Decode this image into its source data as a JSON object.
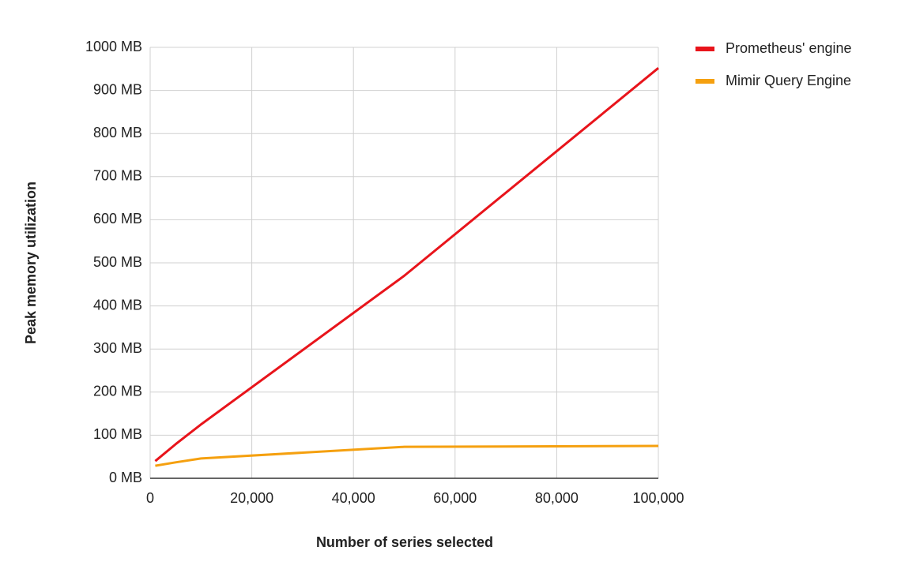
{
  "chart_data": {
    "type": "line",
    "x_label": "Number of series selected",
    "y_label": "Peak memory utilization",
    "x": [
      1000,
      5000,
      10000,
      50000,
      100000
    ],
    "series": [
      {
        "name": "Prometheus' engine",
        "color": "#e8141b",
        "values": [
          40,
          79,
          125,
          470,
          952
        ]
      },
      {
        "name": "Mimir Query Engine",
        "color": "#f5a00f",
        "values": [
          29,
          37,
          46,
          73,
          75
        ]
      }
    ],
    "xlim": [
      0,
      100000
    ],
    "xticks": [
      0,
      {
        "value": 20000,
        "label": "20,000"
      },
      {
        "value": 40000,
        "label": "40,000"
      },
      {
        "value": 60000,
        "label": "60,000"
      },
      {
        "value": 80000,
        "label": "80,000"
      },
      {
        "value": 100000,
        "label": "100,000"
      }
    ],
    "ylim": [
      0,
      1000
    ],
    "yticks": [
      {
        "value": 0,
        "label": "0 MB"
      },
      {
        "value": 100,
        "label": "100 MB"
      },
      {
        "value": 200,
        "label": "200 MB"
      },
      {
        "value": 300,
        "label": "300 MB"
      },
      {
        "value": 400,
        "label": "400 MB"
      },
      {
        "value": 500,
        "label": "500 MB"
      },
      {
        "value": 600,
        "label": "600 MB"
      },
      {
        "value": 700,
        "label": "700 MB"
      },
      {
        "value": 800,
        "label": "800 MB"
      },
      {
        "value": 900,
        "label": "900 MB"
      },
      {
        "value": 1000,
        "label": "1000 MB"
      }
    ],
    "grid": true,
    "legend": "top-right"
  }
}
